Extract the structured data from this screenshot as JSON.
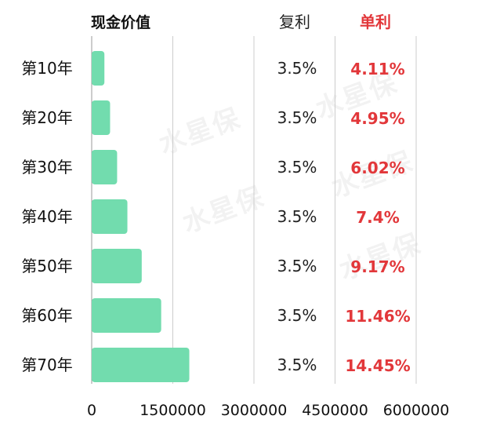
{
  "header": {
    "title": "现金价值",
    "compound_label": "复利",
    "simple_label": "单利"
  },
  "watermark": "水星保",
  "colors": {
    "bar": "#72dcae",
    "simple_rate": "#e2373a",
    "grid": "#cccccc",
    "text": "#111111"
  },
  "chart_data": {
    "type": "bar",
    "orientation": "horizontal",
    "title": "现金价值",
    "categories": [
      "第10年",
      "第20年",
      "第30年",
      "第40年",
      "第50年",
      "第60年",
      "第70年"
    ],
    "values": [
      235000,
      340000,
      470000,
      660000,
      925000,
      1285000,
      1805000
    ],
    "x_ticks": [
      "0",
      "1500000",
      "3000000",
      "4500000",
      "6000000"
    ],
    "xlim": [
      0,
      6000000
    ],
    "grid": true,
    "compound_rates": [
      "3.5%",
      "3.5%",
      "3.5%",
      "3.5%",
      "3.5%",
      "3.5%",
      "3.5%"
    ],
    "simple_rates": [
      "4.11%",
      "4.95%",
      "6.02%",
      "7.4%",
      "9.17%",
      "11.46%",
      "14.45%"
    ]
  }
}
